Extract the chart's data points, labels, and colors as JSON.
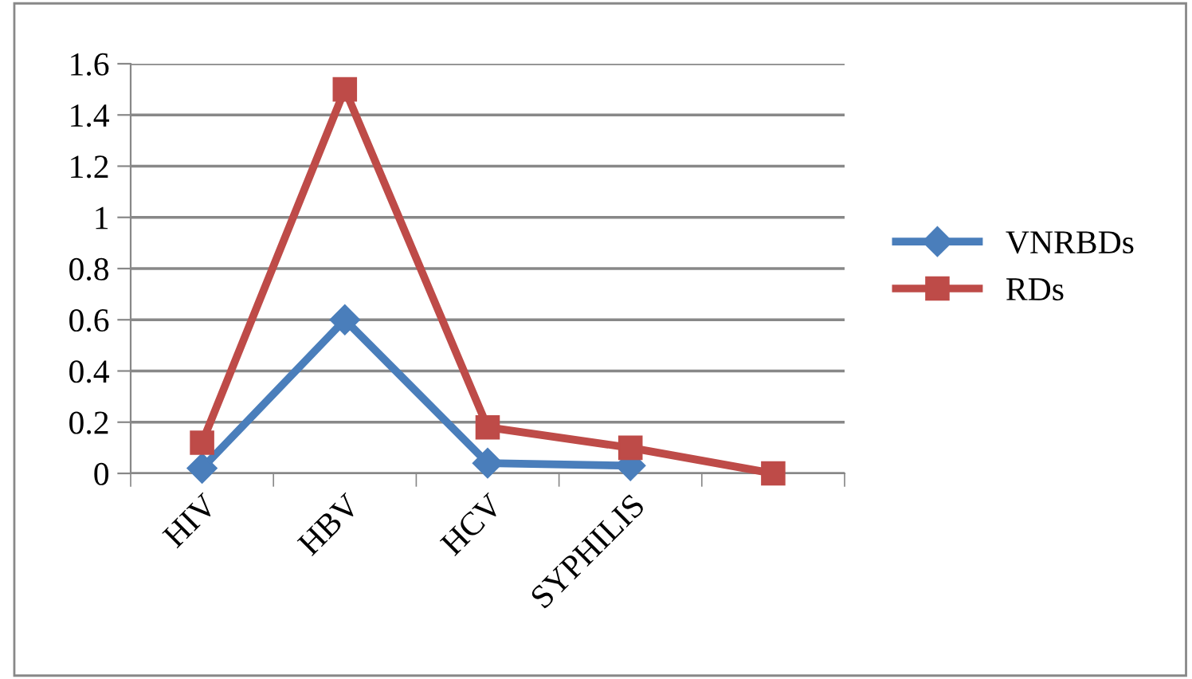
{
  "chart_data": {
    "type": "line",
    "categories": [
      "HIV",
      "HBV",
      "HCV",
      "SYPHILIS",
      null
    ],
    "series": [
      {
        "name": "VNRBDs",
        "color": "#4a7ebb",
        "marker": "diamond",
        "values": [
          0.02,
          0.6,
          0.04,
          0.03,
          null
        ]
      },
      {
        "name": "RDs",
        "color": "#be4b48",
        "marker": "square",
        "values": [
          0.12,
          1.5,
          0.18,
          0.1,
          0
        ]
      }
    ],
    "ylim": [
      0,
      1.6
    ],
    "yticks": [
      0,
      {
        "value": 0.2,
        "label": "0.2"
      },
      {
        "value": 0.4,
        "label": "0.4"
      },
      {
        "value": 0.6,
        "label": "0.6"
      },
      {
        "value": 0.8,
        "label": "0.8"
      },
      1,
      {
        "value": 1.2,
        "label": "1.2"
      },
      {
        "value": 1.4,
        "label": "1.4"
      },
      {
        "value": 1.6,
        "label": "1.6"
      }
    ],
    "grid": "y",
    "legend": "right",
    "line_style": "solid"
  }
}
